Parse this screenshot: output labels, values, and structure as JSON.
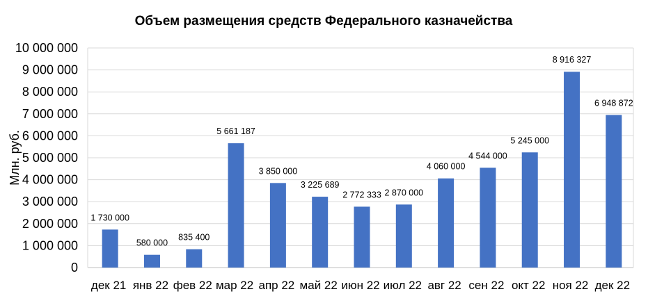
{
  "chart_data": {
    "type": "bar",
    "title": "Объем размещения средств Федерального казначейства",
    "ylabel": "Млн. руб.",
    "xlabel": "",
    "ylim": [
      0,
      10000000
    ],
    "yticks": [
      0,
      1000000,
      2000000,
      3000000,
      4000000,
      5000000,
      6000000,
      7000000,
      8000000,
      9000000,
      10000000
    ],
    "ytick_labels": [
      "0",
      "1 000 000",
      "2 000 000",
      "3 000 000",
      "4 000 000",
      "5 000 000",
      "6 000 000",
      "7 000 000",
      "8 000 000",
      "9 000 000",
      "10 000 000"
    ],
    "grid": true,
    "legend": "none",
    "bar_color": "#4472c4",
    "categories": [
      "дек 21",
      "янв 22",
      "фев 22",
      "мар 22",
      "апр 22",
      "май 22",
      "июн 22",
      "июл 22",
      "авг 22",
      "сен 22",
      "окт 22",
      "ноя 22",
      "дек 22"
    ],
    "values": [
      1730000,
      580000,
      835400,
      5661187,
      3850000,
      3225689,
      2772333,
      2870000,
      4060000,
      4544000,
      5245000,
      8916327,
      6948872
    ],
    "data_labels": [
      "1 730 000",
      "580 000",
      "835 400",
      "5 661 187",
      "3 850 000",
      "3 225 689",
      "2 772 333",
      "2 870 000",
      "4 060 000",
      "4 544 000",
      "5 245 000",
      "8 916 327",
      "6 948 872"
    ]
  }
}
